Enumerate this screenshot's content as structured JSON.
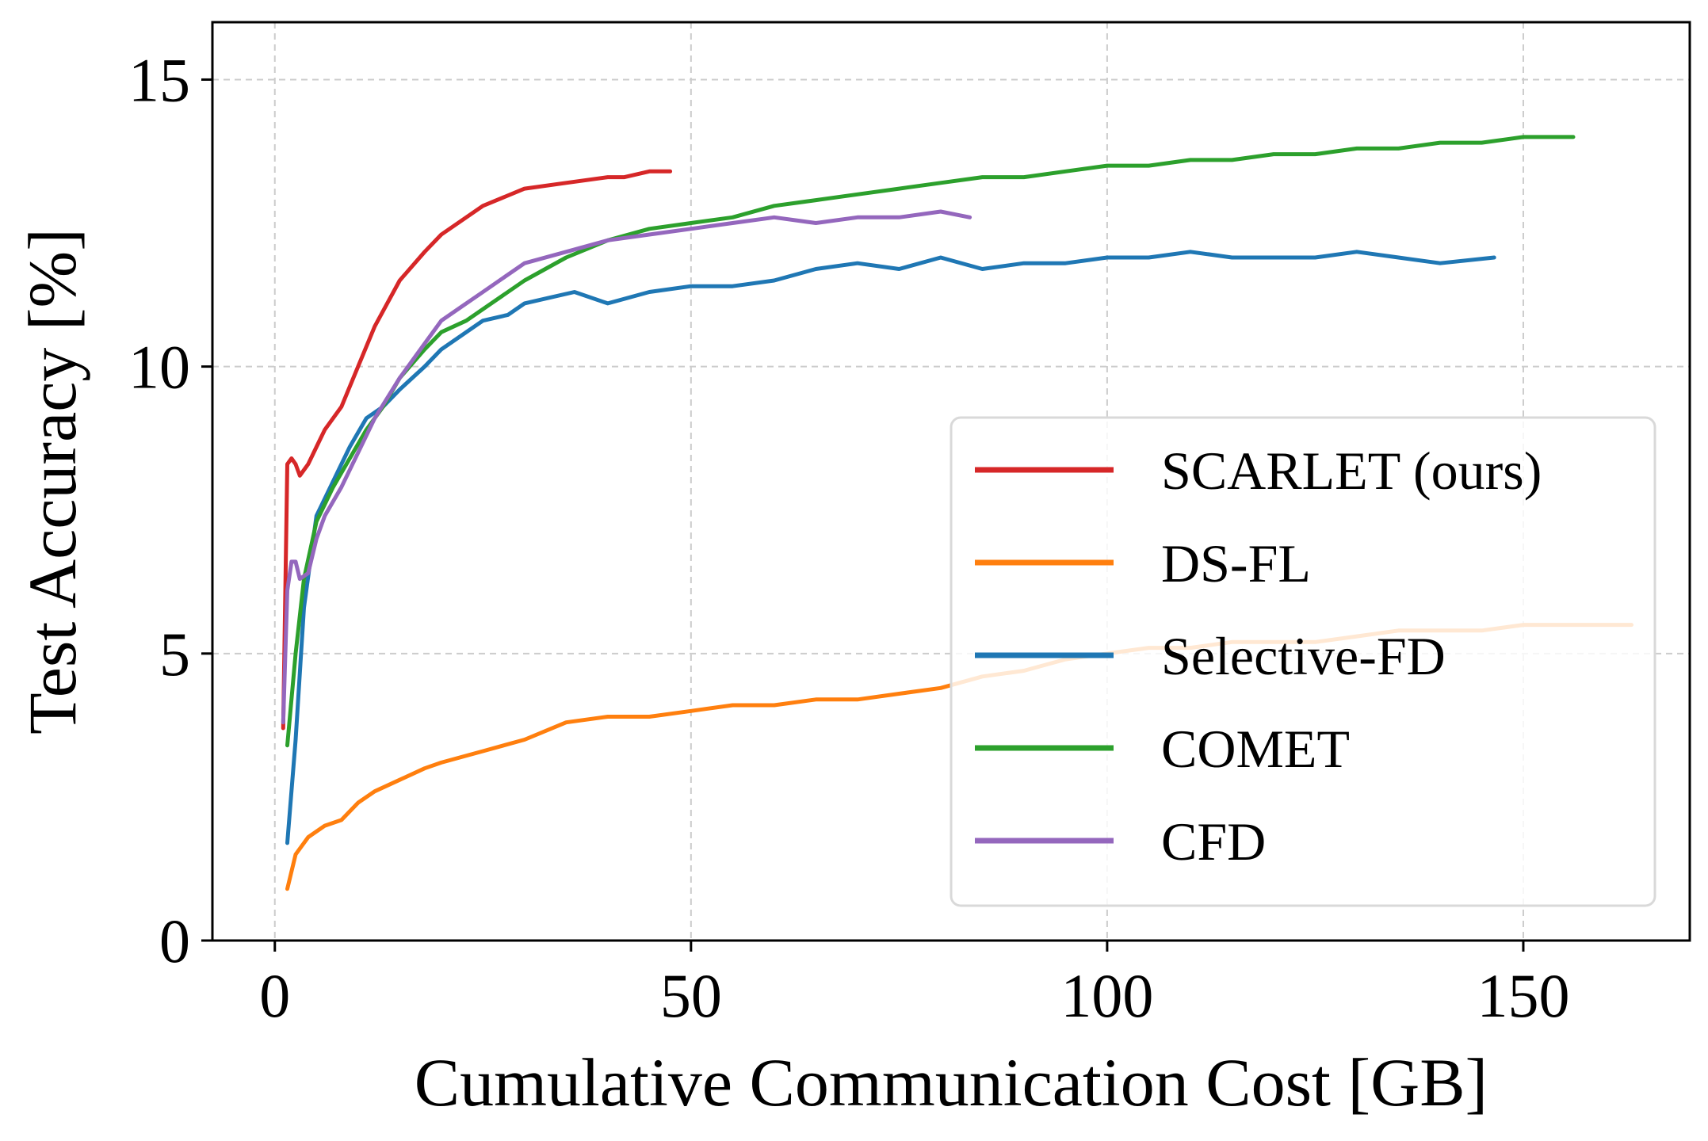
{
  "chart_data": {
    "type": "line",
    "title": "",
    "xlabel": "Cumulative Communication Cost [GB]",
    "ylabel": "Test Accuracy [%]",
    "xlim": [
      -7.5,
      170
    ],
    "ylim": [
      0,
      16
    ],
    "xticks": [
      0,
      50,
      100,
      150
    ],
    "yticks": [
      0,
      5,
      10,
      15
    ],
    "grid": true,
    "legend_position": "lower-right",
    "series": [
      {
        "name": "SCARLET (ours)",
        "color": "#d62728",
        "x": [
          1,
          1.5,
          2,
          2.5,
          3,
          4,
          5,
          6,
          8,
          10,
          12,
          15,
          18,
          20,
          25,
          30,
          35,
          40,
          42,
          45,
          47.5
        ],
        "y": [
          3.7,
          8.3,
          8.4,
          8.3,
          8.1,
          8.3,
          8.6,
          8.9,
          9.3,
          10.0,
          10.7,
          11.5,
          12.0,
          12.3,
          12.8,
          13.1,
          13.2,
          13.3,
          13.3,
          13.4,
          13.4
        ]
      },
      {
        "name": "DS-FL",
        "color": "#ff7f0e",
        "x": [
          1.5,
          2.5,
          4,
          6,
          8,
          10,
          12,
          15,
          18,
          20,
          25,
          30,
          35,
          40,
          45,
          50,
          55,
          60,
          65,
          70,
          75,
          80,
          85,
          90,
          95,
          100,
          105,
          110,
          115,
          120,
          125,
          130,
          135,
          140,
          145,
          150,
          155,
          160,
          163
        ],
        "y": [
          0.9,
          1.5,
          1.8,
          2.0,
          2.1,
          2.4,
          2.6,
          2.8,
          3.0,
          3.1,
          3.3,
          3.5,
          3.8,
          3.9,
          3.9,
          4.0,
          4.1,
          4.1,
          4.2,
          4.2,
          4.3,
          4.4,
          4.6,
          4.7,
          4.9,
          5.0,
          5.1,
          5.1,
          5.2,
          5.2,
          5.2,
          5.3,
          5.4,
          5.4,
          5.4,
          5.5,
          5.5,
          5.5,
          5.5
        ]
      },
      {
        "name": "Selective-FD",
        "color": "#1f77b4",
        "x": [
          1.5,
          2.5,
          3.5,
          5,
          7,
          9,
          11,
          13,
          15,
          18,
          20,
          23,
          25,
          28,
          30,
          33,
          36,
          40,
          45,
          50,
          55,
          60,
          65,
          70,
          75,
          80,
          85,
          90,
          95,
          100,
          105,
          110,
          115,
          120,
          125,
          130,
          135,
          140,
          146.5
        ],
        "y": [
          1.7,
          3.5,
          5.8,
          7.4,
          8.0,
          8.6,
          9.1,
          9.3,
          9.6,
          10.0,
          10.3,
          10.6,
          10.8,
          10.9,
          11.1,
          11.2,
          11.3,
          11.1,
          11.3,
          11.4,
          11.4,
          11.5,
          11.7,
          11.8,
          11.7,
          11.9,
          11.7,
          11.8,
          11.8,
          11.9,
          11.9,
          12.0,
          11.9,
          11.9,
          11.9,
          12.0,
          11.9,
          11.8,
          11.9
        ]
      },
      {
        "name": "COMET",
        "color": "#2ca02c",
        "x": [
          1.5,
          2.5,
          3.5,
          5,
          7,
          9,
          11,
          13,
          15,
          18,
          20,
          23,
          25,
          28,
          30,
          35,
          40,
          45,
          50,
          55,
          60,
          65,
          70,
          75,
          80,
          85,
          90,
          95,
          100,
          105,
          110,
          115,
          120,
          125,
          130,
          135,
          140,
          145,
          150,
          156
        ],
        "y": [
          3.4,
          5.0,
          6.3,
          7.3,
          7.9,
          8.4,
          8.9,
          9.3,
          9.8,
          10.3,
          10.6,
          10.8,
          11.0,
          11.3,
          11.5,
          11.9,
          12.2,
          12.4,
          12.5,
          12.6,
          12.8,
          12.9,
          13.0,
          13.1,
          13.2,
          13.3,
          13.3,
          13.4,
          13.5,
          13.5,
          13.6,
          13.6,
          13.7,
          13.7,
          13.8,
          13.8,
          13.9,
          13.9,
          14.0,
          14.0
        ]
      },
      {
        "name": "CFD",
        "color": "#9467bd",
        "x": [
          1,
          1.5,
          2,
          2.5,
          3,
          4,
          5,
          6,
          8,
          10,
          12,
          15,
          18,
          20,
          23,
          25,
          28,
          30,
          35,
          40,
          45,
          50,
          55,
          60,
          65,
          70,
          75,
          80,
          83.5
        ],
        "y": [
          3.8,
          6.1,
          6.6,
          6.6,
          6.3,
          6.4,
          7.0,
          7.4,
          7.9,
          8.5,
          9.1,
          9.8,
          10.4,
          10.8,
          11.1,
          11.3,
          11.6,
          11.8,
          12.0,
          12.2,
          12.3,
          12.4,
          12.5,
          12.6,
          12.5,
          12.6,
          12.6,
          12.7,
          12.6
        ]
      }
    ]
  }
}
